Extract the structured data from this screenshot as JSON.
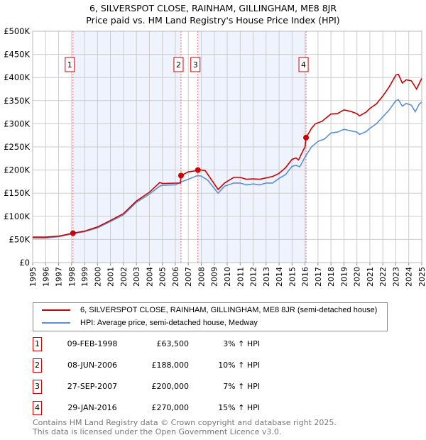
{
  "title": "6, SILVERSPOT CLOSE, RAINHAM, GILLINGHAM, ME8 8JR",
  "subtitle": "Price paid vs. HM Land Registry's House Price Index (HPI)",
  "chart_data": {
    "type": "line",
    "xlim": [
      1995,
      2025
    ],
    "ylim": [
      0,
      500000
    ],
    "y_ticks": [
      0,
      50000,
      100000,
      150000,
      200000,
      250000,
      300000,
      350000,
      400000,
      450000,
      500000
    ],
    "y_tick_labels": [
      "£0",
      "£50K",
      "£100K",
      "£150K",
      "£200K",
      "£250K",
      "£300K",
      "£350K",
      "£400K",
      "£450K",
      "£500K"
    ],
    "x_ticks": [
      "1995",
      "1996",
      "1997",
      "1998",
      "1999",
      "2000",
      "2001",
      "2002",
      "2003",
      "2004",
      "2005",
      "2006",
      "2007",
      "2008",
      "2009",
      "2010",
      "2011",
      "2012",
      "2013",
      "2014",
      "2015",
      "2016",
      "2017",
      "2018",
      "2019",
      "2020",
      "2021",
      "2022",
      "2023",
      "2024",
      "2025"
    ],
    "grid": true,
    "colors": {
      "property": "#cc0000",
      "hpi": "#5b8fd6",
      "shade": "#eef3fd",
      "marker_line": "#ff6666"
    },
    "series": [
      {
        "name": "6, SILVERSPOT CLOSE, RAINHAM, GILLINGHAM, ME8 8JR (semi-detached house)",
        "x": [
          1995,
          1996,
          1997,
          1998.1,
          1999,
          2000,
          2001,
          2002,
          2003,
          2004,
          2004.8,
          2005,
          2006.4,
          2006.44,
          2007,
          2007.5,
          2007.74,
          2008,
          2008.3,
          2009.3,
          2009.8,
          2010.5,
          2011,
          2011.5,
          2012,
          2012.5,
          2013,
          2013.5,
          2014,
          2014.5,
          2015,
          2015.3,
          2015.5,
          2015.9,
          2016.0,
          2016.08,
          2016.5,
          2016.8,
          2017.3,
          2018,
          2018.5,
          2019,
          2019.5,
          2020,
          2020.2,
          2020.7,
          2021,
          2021.5,
          2022,
          2022.5,
          2023,
          2023.2,
          2023.5,
          2023.8,
          2024.2,
          2024.6,
          2025
        ],
        "y": [
          55000,
          55000,
          57000,
          63500,
          68000,
          77000,
          91000,
          106000,
          133000,
          152000,
          173000,
          171000,
          172000,
          188000,
          196000,
          198000,
          200000,
          200000,
          199000,
          158000,
          172000,
          184000,
          184000,
          180000,
          181000,
          180000,
          183000,
          186000,
          193000,
          205000,
          223000,
          226000,
          222000,
          245000,
          250000,
          270000,
          290000,
          300000,
          305000,
          321000,
          322000,
          330000,
          327000,
          322000,
          317000,
          325000,
          333000,
          343000,
          360000,
          380000,
          405000,
          407000,
          388000,
          395000,
          393000,
          375000,
          398000
        ]
      },
      {
        "name": "HPI: Average price, semi-detached house, Medway",
        "x": [
          1995,
          1996,
          1997,
          1998,
          1999,
          2000,
          2001,
          2002,
          2003,
          2004,
          2004.8,
          2005,
          2006,
          2006.5,
          2007,
          2007.7,
          2008,
          2008.5,
          2009.3,
          2009.8,
          2010.5,
          2011,
          2011.5,
          2012,
          2012.5,
          2013,
          2013.5,
          2014,
          2014.5,
          2015,
          2015.3,
          2015.6,
          2016,
          2016.5,
          2017,
          2017.5,
          2018,
          2018.5,
          2019,
          2019.5,
          2020,
          2020.2,
          2020.7,
          2021,
          2021.5,
          2022,
          2022.5,
          2023,
          2023.2,
          2023.5,
          2023.8,
          2024.2,
          2024.5,
          2024.8,
          2025
        ],
        "y": [
          53000,
          53000,
          56000,
          62000,
          67000,
          75000,
          89000,
          103000,
          130000,
          148000,
          165000,
          167000,
          168000,
          175000,
          180000,
          188000,
          187000,
          178000,
          150000,
          165000,
          172000,
          172000,
          168000,
          170000,
          168000,
          172000,
          172000,
          182000,
          190000,
          208000,
          210000,
          207000,
          228000,
          250000,
          262000,
          267000,
          280000,
          282000,
          288000,
          285000,
          282000,
          277000,
          283000,
          290000,
          300000,
          315000,
          330000,
          350000,
          352000,
          338000,
          344000,
          340000,
          326000,
          342000,
          347000
        ]
      }
    ],
    "sales": [
      {
        "n": "1",
        "x": 1998.11,
        "y": 63500
      },
      {
        "n": "2",
        "x": 2006.44,
        "y": 188000
      },
      {
        "n": "3",
        "x": 2007.74,
        "y": 200000
      },
      {
        "n": "4",
        "x": 2016.08,
        "y": 270000
      }
    ]
  },
  "legend": {
    "property": "6, SILVERSPOT CLOSE, RAINHAM, GILLINGHAM, ME8 8JR (semi-detached house)",
    "hpi": "HPI: Average price, semi-detached house, Medway"
  },
  "transactions": [
    {
      "n": "1",
      "date": "09-FEB-1998",
      "price": "£63,500",
      "hpi": "3% ↑ HPI"
    },
    {
      "n": "2",
      "date": "08-JUN-2006",
      "price": "£188,000",
      "hpi": "10% ↑ HPI"
    },
    {
      "n": "3",
      "date": "27-SEP-2007",
      "price": "£200,000",
      "hpi": "7% ↑ HPI"
    },
    {
      "n": "4",
      "date": "29-JAN-2016",
      "price": "£270,000",
      "hpi": "15% ↑ HPI"
    }
  ],
  "footer": {
    "line1": "Contains HM Land Registry data © Crown copyright and database right 2025.",
    "line2": "This data is licensed under the Open Government Licence v3.0."
  }
}
